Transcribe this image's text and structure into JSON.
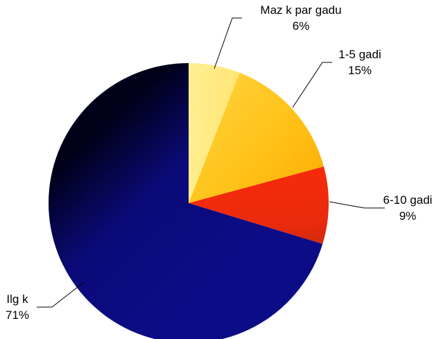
{
  "chart_data": {
    "type": "pie",
    "start_angle_deg": 0,
    "direction": "clockwise",
    "slices": [
      {
        "label": "Maz  k par gadu",
        "value": 6,
        "value_label": "6%",
        "color": "#ffe77a",
        "color_light": "#fff8b5",
        "color_dark": "#f2c230"
      },
      {
        "label": "1-5 gadi",
        "value": 15,
        "value_label": "15%",
        "color": "#ffbf14",
        "color_light": "#ffd23a",
        "color_dark": "#ffa500"
      },
      {
        "label": "6-10 gadi",
        "value": 9,
        "value_label": "9%",
        "color": "#e92a0c",
        "color_light": "#ff2a0a",
        "color_dark": "#8b2b0a"
      },
      {
        "label": "Ilg  k",
        "value": 71,
        "value_label": "71%",
        "color": "#0a0a78",
        "color_light": "#0c0c86",
        "color_dark": "#000018"
      }
    ]
  }
}
